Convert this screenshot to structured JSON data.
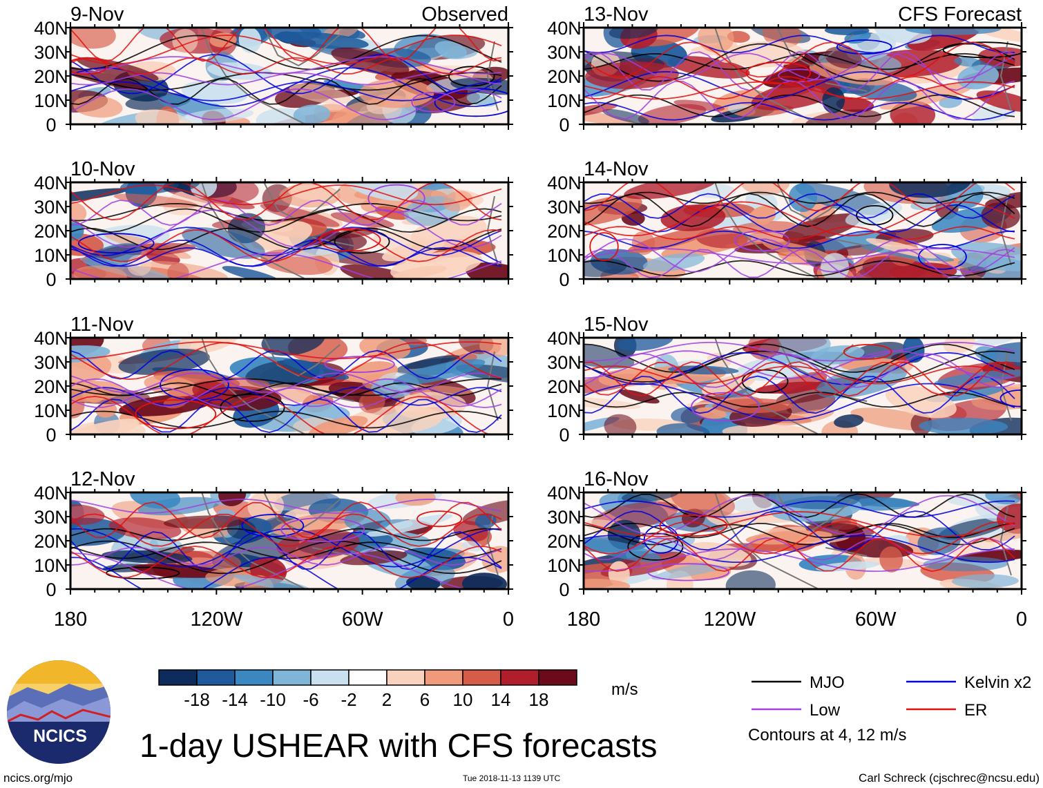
{
  "title": "1-day USHEAR with CFS forecasts",
  "logo": {
    "text": "NCICS"
  },
  "footer": {
    "url": "ncics.org/mjo",
    "timestamp": "Tue 2018-11-13 1139 UTC",
    "author": "Carl Schreck (cjschrec@ncsu.edu)"
  },
  "headers": {
    "observed": "Observed",
    "forecast": "CFS Forecast"
  },
  "colorbar": {
    "units": "m/s",
    "labels": [
      "-18",
      "-14",
      "-10",
      "-6",
      "-2",
      "2",
      "6",
      "10",
      "14",
      "18"
    ],
    "colors": [
      "#0d2c5b",
      "#1f5b9c",
      "#3b87c1",
      "#81b5d8",
      "#c9e0ee",
      "#ffffff",
      "#f9d2bd",
      "#ef9b7b",
      "#d65c4a",
      "#b01e2c",
      "#6b0a1a"
    ]
  },
  "legend": {
    "items": [
      {
        "label": "MJO",
        "color": "#000000"
      },
      {
        "label": "Kelvin x2",
        "color": "#0000dd"
      },
      {
        "label": "Low",
        "color": "#a040e0"
      },
      {
        "label": "ER",
        "color": "#e01010"
      }
    ],
    "note": "Contours at 4, 12 m/s"
  },
  "chart_data": [
    {
      "type": "heatmap",
      "title": "9-Nov",
      "panel_header": "Observed",
      "variable": "1-day USHEAR (m/s)",
      "x_ticks": [
        "180",
        "120W",
        "60W",
        "0"
      ],
      "y_ticks": [
        "40N",
        "30N",
        "20N",
        "10N",
        "0"
      ],
      "xlim": [
        -180,
        0
      ],
      "ylim": [
        0,
        40
      ],
      "contour_levels_ms": [
        4,
        12
      ]
    },
    {
      "type": "heatmap",
      "title": "10-Nov",
      "variable": "1-day USHEAR (m/s)",
      "x_ticks": [
        "180",
        "120W",
        "60W",
        "0"
      ],
      "y_ticks": [
        "40N",
        "30N",
        "20N",
        "10N",
        "0"
      ],
      "xlim": [
        -180,
        0
      ],
      "ylim": [
        0,
        40
      ],
      "contour_levels_ms": [
        4,
        12
      ]
    },
    {
      "type": "heatmap",
      "title": "11-Nov",
      "variable": "1-day USHEAR (m/s)",
      "x_ticks": [
        "180",
        "120W",
        "60W",
        "0"
      ],
      "y_ticks": [
        "40N",
        "30N",
        "20N",
        "10N",
        "0"
      ],
      "xlim": [
        -180,
        0
      ],
      "ylim": [
        0,
        40
      ],
      "contour_levels_ms": [
        4,
        12
      ]
    },
    {
      "type": "heatmap",
      "title": "12-Nov",
      "variable": "1-day USHEAR (m/s)",
      "x_ticks": [
        "180",
        "120W",
        "60W",
        "0"
      ],
      "y_ticks": [
        "40N",
        "30N",
        "20N",
        "10N",
        "0"
      ],
      "xlim": [
        -180,
        0
      ],
      "ylim": [
        0,
        40
      ],
      "contour_levels_ms": [
        4,
        12
      ]
    },
    {
      "type": "heatmap",
      "title": "13-Nov",
      "panel_header": "CFS Forecast",
      "variable": "1-day USHEAR (m/s)",
      "x_ticks": [
        "180",
        "120W",
        "60W",
        "0"
      ],
      "y_ticks": [
        "40N",
        "30N",
        "20N",
        "10N",
        "0"
      ],
      "xlim": [
        -180,
        0
      ],
      "ylim": [
        0,
        40
      ],
      "contour_levels_ms": [
        4,
        12
      ]
    },
    {
      "type": "heatmap",
      "title": "14-Nov",
      "variable": "1-day USHEAR (m/s)",
      "x_ticks": [
        "180",
        "120W",
        "60W",
        "0"
      ],
      "y_ticks": [
        "40N",
        "30N",
        "20N",
        "10N",
        "0"
      ],
      "xlim": [
        -180,
        0
      ],
      "ylim": [
        0,
        40
      ],
      "contour_levels_ms": [
        4,
        12
      ]
    },
    {
      "type": "heatmap",
      "title": "15-Nov",
      "variable": "1-day USHEAR (m/s)",
      "x_ticks": [
        "180",
        "120W",
        "60W",
        "0"
      ],
      "y_ticks": [
        "40N",
        "30N",
        "20N",
        "10N",
        "0"
      ],
      "xlim": [
        -180,
        0
      ],
      "ylim": [
        0,
        40
      ],
      "contour_levels_ms": [
        4,
        12
      ]
    },
    {
      "type": "heatmap",
      "title": "16-Nov",
      "variable": "1-day USHEAR (m/s)",
      "x_ticks": [
        "180",
        "120W",
        "60W",
        "0"
      ],
      "y_ticks": [
        "40N",
        "30N",
        "20N",
        "10N",
        "0"
      ],
      "xlim": [
        -180,
        0
      ],
      "ylim": [
        0,
        40
      ],
      "contour_levels_ms": [
        4,
        12
      ]
    }
  ]
}
